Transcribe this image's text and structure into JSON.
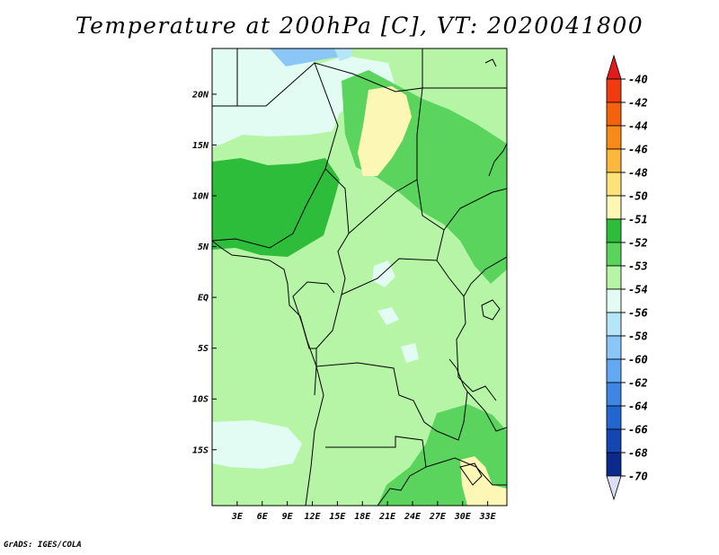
{
  "title": "Temperature at 200hPa [C], VT: 2020041800",
  "credit": "GrADS: IGES/COLA",
  "map": {
    "variable": "Temperature at 200hPa",
    "units": "C",
    "valid_time": "2020041800",
    "lat_labels": [
      "20N",
      "15N",
      "10N",
      "5N",
      "EQ",
      "5S",
      "10S",
      "15S"
    ],
    "lon_labels": [
      "3E",
      "6E",
      "9E",
      "12E",
      "15E",
      "18E",
      "21E",
      "24E",
      "27E",
      "30E",
      "33E"
    ],
    "lat_values": [
      20,
      15,
      10,
      5,
      0,
      -5,
      -10,
      -15
    ],
    "lon_values": [
      3,
      6,
      9,
      12,
      15,
      18,
      21,
      24,
      27,
      30,
      33
    ]
  },
  "colorbar": {
    "labels": [
      "-40",
      "-42",
      "-44",
      "-46",
      "-48",
      "-50",
      "-51",
      "-52",
      "-53",
      "-54",
      "-56",
      "-58",
      "-60",
      "-62",
      "-64",
      "-66",
      "-68",
      "-70"
    ],
    "colors": [
      "#e31a1c",
      "#f03a10",
      "#f5620c",
      "#f88a1a",
      "#fbb83a",
      "#fde27a",
      "#fdf7b6",
      "#2ebd3a",
      "#5ad45c",
      "#b6f5a6",
      "#e2fcf4",
      "#b4e5f8",
      "#8ac6f6",
      "#62a8f2",
      "#3f86e4",
      "#2266d2",
      "#1446b2",
      "#0c2a8c",
      "#041060",
      "#dcdcf2"
    ]
  },
  "colors": {
    "lightcyan": "#e2fcf4",
    "palegreen": "#b6f5a6",
    "midgreen": "#5ad45c",
    "darkgreen": "#2ebd3a",
    "paleyellow": "#fdf7b6",
    "lightblue": "#b4e5f8",
    "skyblue": "#8ac6f6"
  }
}
